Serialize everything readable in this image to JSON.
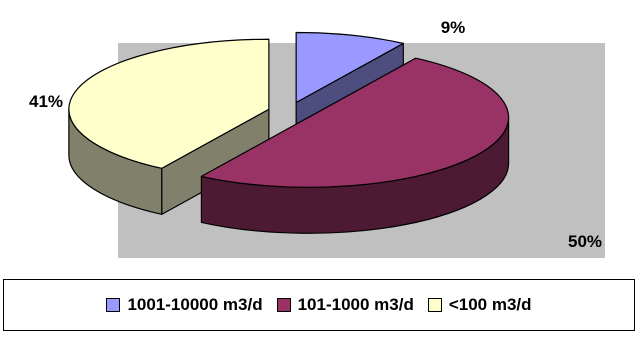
{
  "chart_data": {
    "type": "pie",
    "style": "3d-exploded",
    "categories": [
      "1001-10000 m3/d",
      "101-1000 m3/d",
      "<100 m3/d"
    ],
    "values": [
      9,
      50,
      41
    ],
    "data_labels": [
      "9%",
      "50%",
      "41%"
    ],
    "colors": {
      "top": [
        "#9999ff",
        "#993366",
        "#ffffcc"
      ],
      "side": [
        "#4d4d80",
        "#4d1a33",
        "#80806b"
      ]
    },
    "plot_area_color": "#c0c0c0",
    "legend_position": "bottom"
  }
}
